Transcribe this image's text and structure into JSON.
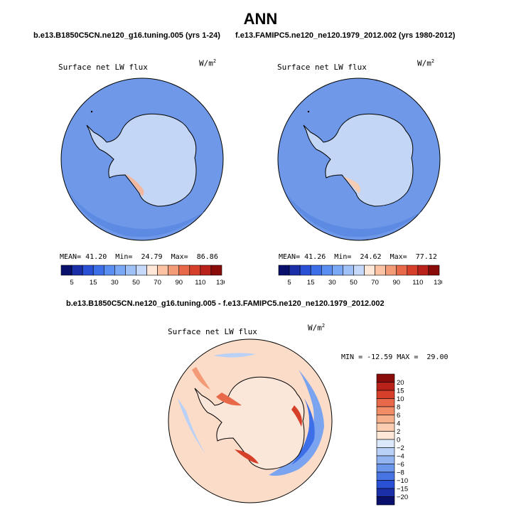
{
  "main_title": "ANN",
  "panels": [
    {
      "case_title": "b.e13.B1850C5CN.ne120_g16.tuning.005 (yrs 1-24)",
      "title": "Surface net LW flux",
      "units_base": "W/m",
      "units_exp": "2",
      "stats": {
        "mean_label": "MEAN=",
        "mean": "41.20",
        "min_label": "Min=",
        "min": "24.79",
        "max_label": "Max=",
        "max": "86.86"
      }
    },
    {
      "case_title": "f.e13.FAMIPC5.ne120_ne120.1979_2012.002 (yrs 1980-2012)",
      "title": "Surface net LW flux",
      "units_base": "W/m",
      "units_exp": "2",
      "stats": {
        "mean_label": "MEAN=",
        "mean": "41.26",
        "min_label": "Min=",
        "min": "24.62",
        "max_label": "Max=",
        "max": "77.12"
      }
    }
  ],
  "diff_panel": {
    "case_title": "b.e13.B1850C5CN.ne120_g16.tuning.005 - f.e13.FAMIPC5.ne120_ne120.1979_2012.002",
    "title": "Surface net LW flux",
    "units_base": "W/m",
    "units_exp": "2",
    "minmax_text": "MIN = -12.59 MAX =  29.00"
  },
  "abs_colorbar": {
    "tick_labels": [
      "5",
      "15",
      "30",
      "50",
      "70",
      "90",
      "110",
      "130"
    ],
    "colors": [
      "#08106b",
      "#1a2fa8",
      "#2a50d6",
      "#3d6fe8",
      "#5a8ef0",
      "#7aa8f4",
      "#a0c1f7",
      "#c6d9fa",
      "#ffe8d8",
      "#fbc3a3",
      "#f39b76",
      "#e8694a",
      "#d6402a",
      "#b8221a",
      "#8a0c0a"
    ]
  },
  "diff_colorbar": {
    "levels": [
      "20",
      "15",
      "10",
      "8",
      "6",
      "4",
      "2",
      "0",
      "−2",
      "−4",
      "−6",
      "−8",
      "−10",
      "−15",
      "−20"
    ],
    "colors": [
      "#8a0c0a",
      "#b8221a",
      "#d6402a",
      "#e8694a",
      "#f08d66",
      "#f7b08c",
      "#fbcdb0",
      "#ffe8d8",
      "#dbe7fb",
      "#b9d0f7",
      "#92b5f2",
      "#6c96ec",
      "#4874e3",
      "#2a50d6",
      "#1a2fa8",
      "#08106b"
    ]
  },
  "colors": {
    "ocean_abs": "#6f99e8",
    "land_abs": "#c3d6f5",
    "diff_bg": "#fbdcc8",
    "coast": "#000000"
  }
}
